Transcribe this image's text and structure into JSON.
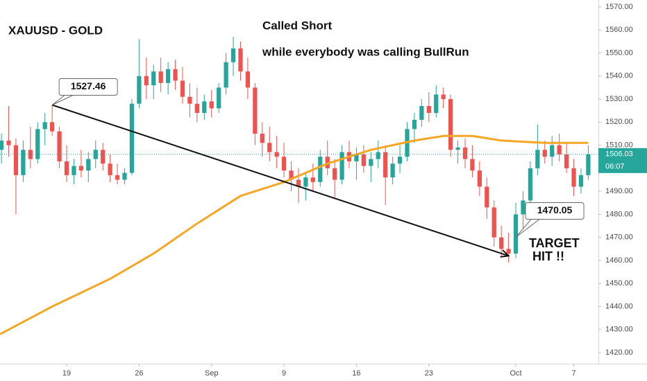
{
  "chart_data": {
    "type": "candlestick",
    "title": "XAUUSD - GOLD",
    "annotations": [
      "Called Short",
      "while everybody was calling BullRun"
    ],
    "target_text": [
      "TARGET",
      "HIT !!"
    ],
    "up_color": "#26a69a",
    "down_color": "#ef5350",
    "x": [
      -4.5,
      -4,
      -3.5,
      -3,
      -2.5,
      -2,
      -1.5,
      -1,
      -0.5,
      0,
      0.5,
      1,
      1.5,
      2,
      2.5,
      3,
      3.5,
      4,
      4.5,
      5,
      5.5,
      6,
      6.5,
      7,
      7.5,
      8,
      8.5,
      9,
      9.5,
      10,
      10.5,
      11,
      11.5,
      12,
      12.5,
      13,
      13.5,
      14,
      14.5,
      15,
      15.5,
      16,
      16.5,
      17,
      17.5,
      18,
      18.5,
      19,
      19.5,
      20,
      20.5,
      21,
      21.5,
      22,
      22.5,
      23,
      23.5,
      24,
      24.5,
      25,
      25.5,
      26,
      26.5,
      27,
      27.5,
      28,
      28.5,
      29,
      29.5,
      30,
      30.5,
      31,
      31.5,
      32,
      32.5,
      33,
      33.5,
      34,
      34.5,
      35,
      35.5,
      36
    ],
    "open": [
      1508,
      1512,
      1510,
      1497,
      1508,
      1504,
      1517,
      1520,
      1516,
      1503,
      1497,
      1501,
      1499,
      1504,
      1508,
      1502,
      1497,
      1495,
      1498,
      1528,
      1540,
      1536,
      1542,
      1537,
      1543,
      1538,
      1531,
      1528,
      1524,
      1529,
      1526,
      1535,
      1546,
      1552,
      1542,
      1535,
      1515,
      1511,
      1507,
      1505,
      1499,
      1495,
      1492,
      1496,
      1494,
      1505,
      1500,
      1495,
      1507,
      1503,
      1506,
      1501,
      1504,
      1507,
      1496,
      1502,
      1505,
      1517,
      1521,
      1527,
      1524,
      1532,
      1530,
      1508,
      1509,
      1504,
      1499,
      1492,
      1483,
      1470,
      1465,
      1463,
      1480,
      1486,
      1500,
      1508,
      1505,
      1510,
      1506,
      1500,
      1492,
      1497
    ],
    "high": [
      1515,
      1527,
      1513,
      1512,
      1518,
      1520,
      1524,
      1527.46,
      1518,
      1510,
      1504,
      1508,
      1507,
      1512,
      1511,
      1506,
      1502,
      1500,
      1530,
      1556,
      1548,
      1545,
      1548,
      1546,
      1547,
      1544,
      1537,
      1535,
      1532,
      1534,
      1537,
      1550,
      1557,
      1555,
      1548,
      1537,
      1520,
      1518,
      1514,
      1511,
      1503,
      1500,
      1498,
      1502,
      1508,
      1512,
      1504,
      1510,
      1512,
      1509,
      1510,
      1507,
      1512,
      1510,
      1505,
      1510,
      1520,
      1524,
      1530,
      1533,
      1536,
      1535,
      1532,
      1512,
      1513,
      1510,
      1503,
      1496,
      1486,
      1475,
      1472,
      1485,
      1490,
      1503,
      1519,
      1512,
      1514,
      1515,
      1511,
      1504,
      1500,
      1510
    ],
    "low": [
      1502,
      1505,
      1480,
      1494,
      1500,
      1502,
      1510,
      1514,
      1500,
      1494,
      1493,
      1496,
      1494,
      1500,
      1499,
      1494,
      1493,
      1493,
      1497,
      1526,
      1530,
      1530,
      1533,
      1532,
      1534,
      1528,
      1522,
      1520,
      1521,
      1522,
      1524,
      1532,
      1540,
      1538,
      1530,
      1510,
      1505,
      1503,
      1500,
      1496,
      1490,
      1485,
      1486,
      1490,
      1492,
      1497,
      1487,
      1493,
      1500,
      1495,
      1498,
      1494,
      1500,
      1484,
      1493,
      1498,
      1503,
      1511,
      1518,
      1520,
      1522,
      1526,
      1505,
      1502,
      1500,
      1496,
      1488,
      1478,
      1466,
      1462,
      1459,
      1461,
      1474,
      1484,
      1497,
      1502,
      1501,
      1503,
      1498,
      1488,
      1489,
      1495
    ],
    "close": [
      1512,
      1510,
      1497,
      1508,
      1504,
      1517,
      1520,
      1516,
      1503,
      1497,
      1501,
      1499,
      1504,
      1508,
      1502,
      1497,
      1495,
      1498,
      1528,
      1540,
      1536,
      1542,
      1537,
      1543,
      1538,
      1531,
      1528,
      1524,
      1529,
      1526,
      1535,
      1546,
      1552,
      1542,
      1535,
      1515,
      1511,
      1507,
      1505,
      1499,
      1495,
      1492,
      1496,
      1494,
      1505,
      1500,
      1495,
      1507,
      1503,
      1506,
      1501,
      1504,
      1507,
      1496,
      1502,
      1505,
      1517,
      1521,
      1527,
      1524,
      1532,
      1530,
      1508,
      1509,
      1504,
      1499,
      1492,
      1483,
      1470,
      1465,
      1463,
      1480,
      1486,
      1500,
      1508,
      1505,
      1510,
      1506,
      1500,
      1492,
      1497,
      1506.03
    ],
    "moving_average": {
      "color": "#f5a623",
      "x": [
        -4.6,
        -1,
        3,
        6,
        9,
        12,
        15,
        18,
        21,
        24,
        26,
        28,
        30,
        33,
        36
      ],
      "values": [
        1428,
        1440,
        1452,
        1463,
        1476,
        1488,
        1494,
        1502,
        1508,
        1512,
        1514,
        1514,
        1512,
        1511,
        1511
      ]
    },
    "trend_arrow": {
      "x": [
        -1,
        30.5
      ],
      "values": [
        1527.46,
        1462
      ]
    },
    "callouts": [
      {
        "x": -1,
        "value": 1527.46
      },
      {
        "x": 31,
        "value": 1470.05
      }
    ],
    "last_price": 1506.03,
    "countdown": "06:07",
    "xlim": [
      -4.6,
      36.7
    ],
    "ylim": [
      1415.2,
      1573
    ],
    "xticks": [
      {
        "value": 0,
        "label": "19"
      },
      {
        "value": 5,
        "label": "26"
      },
      {
        "value": 10,
        "label": "Sep"
      },
      {
        "value": 15,
        "label": "9"
      },
      {
        "value": 20,
        "label": "16"
      },
      {
        "value": 25,
        "label": "23"
      },
      {
        "value": 31,
        "label": "Oct"
      },
      {
        "value": 35,
        "label": "7"
      }
    ],
    "yticks": [
      {
        "value": 1420,
        "label": "1420.00"
      },
      {
        "value": 1430,
        "label": "1430.00"
      },
      {
        "value": 1440,
        "label": "1440.00"
      },
      {
        "value": 1450,
        "label": "1450.00"
      },
      {
        "value": 1460,
        "label": "1460.00"
      },
      {
        "value": 1470,
        "label": "1470.00"
      },
      {
        "value": 1480,
        "label": "1480.00"
      },
      {
        "value": 1490,
        "label": "1490.00"
      },
      {
        "value": 1500,
        "label": "1500.00"
      },
      {
        "value": 1510,
        "label": "1510.00"
      },
      {
        "value": 1520,
        "label": "1520.00"
      },
      {
        "value": 1530,
        "label": "1530.00"
      },
      {
        "value": 1540,
        "label": "1540.00"
      },
      {
        "value": 1550,
        "label": "1550.00"
      },
      {
        "value": 1560,
        "label": "1560.00"
      },
      {
        "value": 1570,
        "label": "1570.00"
      }
    ]
  }
}
